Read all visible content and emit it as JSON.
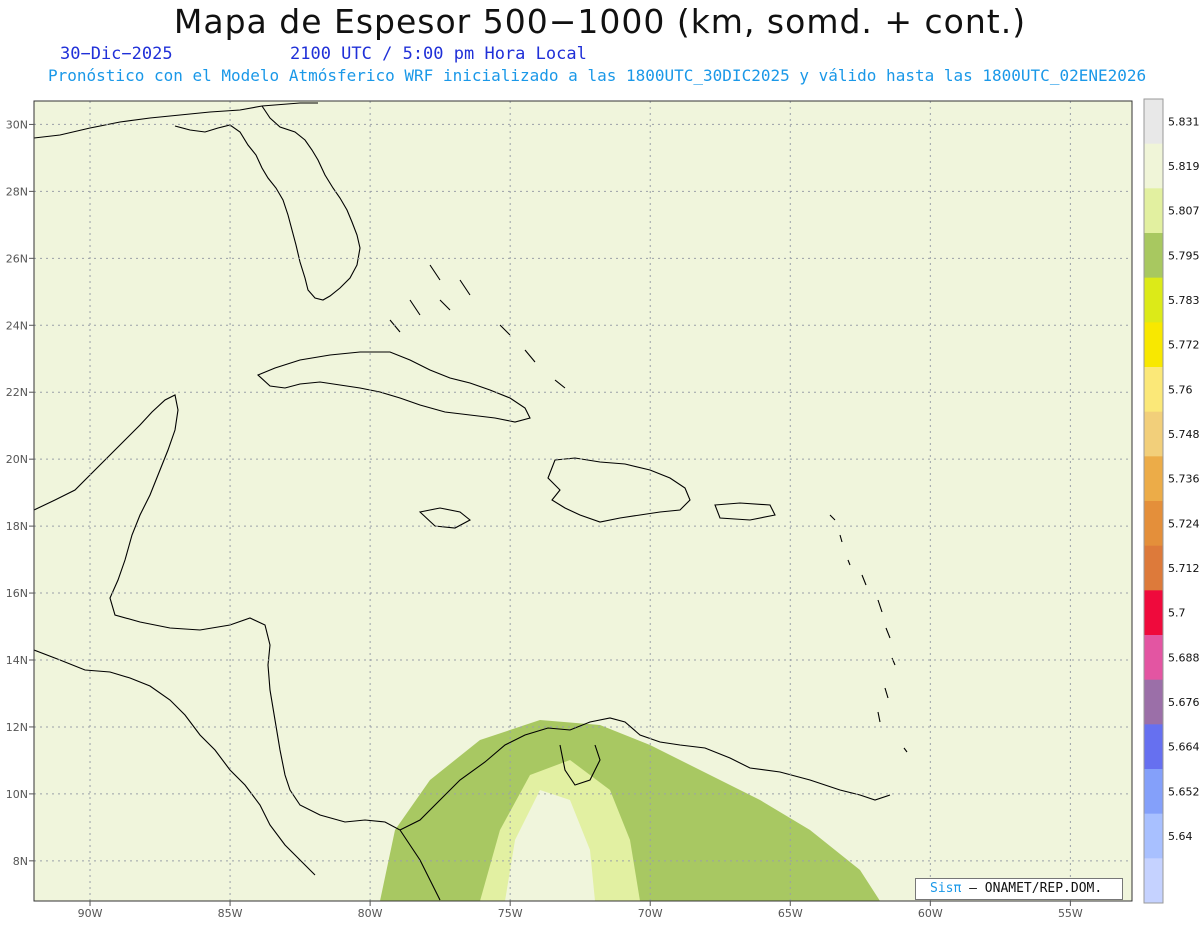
{
  "title": "Mapa de Espesor 500−1000 (km, somd. + cont.)",
  "date_label": "30−Dic−2025",
  "time_label": "2100 UTC / 5:00 pm Hora Local",
  "subtitle": "Pronóstico con el Modelo Atmósferico WRF inicializado a las 1800UTC_30DIC2025 y válido hasta las  1800UTC_02ENE2026",
  "credit": {
    "brand": "Sisπ",
    "rest": " – ONAMET/REP.DOM."
  },
  "lat_labels": [
    "30N",
    "28N",
    "26N",
    "24N",
    "22N",
    "20N",
    "18N",
    "16N",
    "14N",
    "12N",
    "10N",
    "8N"
  ],
  "lon_labels": [
    "90W",
    "85W",
    "80W",
    "75W",
    "70W",
    "65W",
    "60W",
    "55W"
  ],
  "colorbar": {
    "labels": [
      "5.831",
      "5.819",
      "5.807",
      "5.795",
      "5.783",
      "5.772",
      "5.76",
      "5.748",
      "5.736",
      "5.724",
      "5.712",
      "5.7",
      "5.688",
      "5.676",
      "5.664",
      "5.652",
      "5.64"
    ],
    "colors": [
      "#e8e8e8",
      "#f0f5d8",
      "#e2f0a0",
      "#a8c860",
      "#dcea18",
      "#f8e800",
      "#fbe878",
      "#f2cf7a",
      "#ecac48",
      "#e48f3a",
      "#dd7a3a",
      "#ef0a3c",
      "#e355a2",
      "#9b6fa8",
      "#6670f0",
      "#84a0fa",
      "#a8c0ff",
      "#c5d2ff"
    ]
  },
  "map": {
    "lon_range": [
      -92,
      -52.8
    ],
    "lat_range": [
      6.8,
      30.7
    ],
    "band_colors": [
      "#b4c5ff",
      "#8ea8ff",
      "#6672f2",
      "#9a70a6",
      "#e356a4",
      "#ec0a3c",
      "#dc7a3a",
      "#e68f3c",
      "#eeac4c",
      "#f2cf7c",
      "#fbe77a",
      "#f8e800",
      "#dcea1c",
      "#a8c862",
      "#e2f0a2",
      "#f0f5dc"
    ]
  }
}
